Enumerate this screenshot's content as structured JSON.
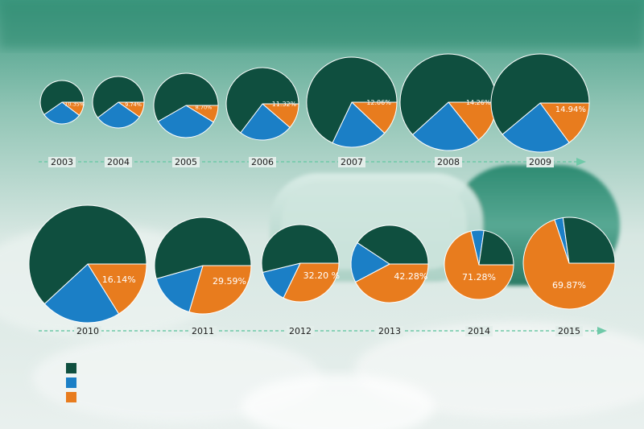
{
  "colors": {
    "dark": "#0f4f3f",
    "blue": "#1b7fc6",
    "orange": "#e87c1e",
    "arrow": "#6fc9a8",
    "year_text": "#1a1a1a",
    "label_text": "#ffffff"
  },
  "legend": [
    {
      "label": "",
      "color": "#0f4f3f"
    },
    {
      "label": "",
      "color": "#1b7fc6"
    },
    {
      "label": "",
      "color": "#e87c1e"
    }
  ],
  "chart_data": {
    "type": "pie",
    "series_order": [
      "orange",
      "blue",
      "dark"
    ],
    "pies": [
      {
        "year": "2003",
        "orange": 10.35,
        "blue": 30,
        "label": "10.35%"
      },
      {
        "year": "2004",
        "orange": 9.74,
        "blue": 30,
        "label": "9.74%"
      },
      {
        "year": "2005",
        "orange": 8.7,
        "blue": 33,
        "label": "8.70%"
      },
      {
        "year": "2006",
        "orange": 11.32,
        "blue": 24,
        "label": "11.32%"
      },
      {
        "year": "2007",
        "orange": 12.06,
        "blue": 20,
        "label": "12.06%"
      },
      {
        "year": "2008",
        "orange": 14.26,
        "blue": 24,
        "label": "14.26%"
      },
      {
        "year": "2009",
        "orange": 14.94,
        "blue": 24,
        "label": "14.94%"
      },
      {
        "year": "2010",
        "orange": 16.14,
        "blue": 22,
        "label": "16.14%"
      },
      {
        "year": "2011",
        "orange": 29.59,
        "blue": 16,
        "label": "29.59%"
      },
      {
        "year": "2012",
        "orange": 32.2,
        "blue": 14,
        "label": "32.20 %"
      },
      {
        "year": "2013",
        "orange": 42.28,
        "blue": 17,
        "label": "42.28%"
      },
      {
        "year": "2014",
        "orange": 71.28,
        "blue": 6,
        "label": "71.28%"
      },
      {
        "year": "2015",
        "orange": 69.87,
        "blue": 3,
        "label": "69.87%"
      }
    ]
  }
}
